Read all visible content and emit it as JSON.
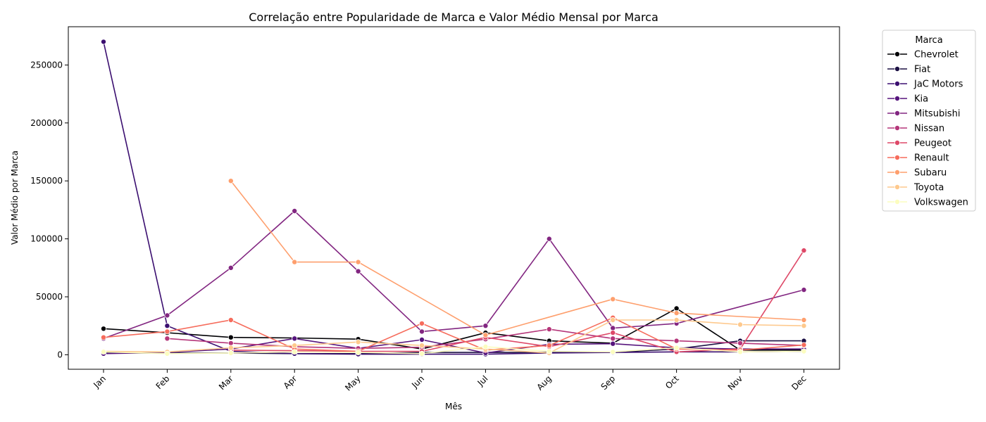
{
  "chart_data": {
    "type": "line",
    "title": "Correlação entre Popularidade de Marca e Valor Médio Mensal por Marca",
    "xlabel": "Mês",
    "ylabel": "Valor Médio por Marca",
    "categories": [
      "Jan",
      "Feb",
      "Mar",
      "Apr",
      "May",
      "Jun",
      "Jul",
      "Aug",
      "Sep",
      "Oct",
      "Nov",
      "Dec"
    ],
    "ylim": [
      -12500,
      283000
    ],
    "yticks": [
      0,
      50000,
      100000,
      150000,
      200000,
      250000
    ],
    "grid": false,
    "legend": {
      "title": "Marca",
      "placement": "outside-top-right"
    },
    "series": [
      {
        "name": "Chevrolet",
        "color": "#000004",
        "values": [
          22500,
          19000,
          15000,
          14500,
          13500,
          5000,
          19000,
          12000,
          10000,
          40000,
          4000,
          4000
        ]
      },
      {
        "name": "Fiat",
        "color": "#1c1044",
        "values": [
          1500,
          1500,
          1500,
          1000,
          1000,
          2000,
          2000,
          2000,
          2000,
          5000,
          12000,
          12000
        ]
      },
      {
        "name": "JaC Motors",
        "color": "#3b0f70",
        "values": [
          270000,
          25000,
          3000,
          1000,
          500,
          500,
          500,
          1500,
          2000,
          2500,
          2500,
          3000
        ]
      },
      {
        "name": "Kia",
        "color": "#56147d",
        "values": [
          1000,
          2000,
          5000,
          14000,
          5500,
          13000,
          1500,
          9000,
          9500,
          6000,
          5000,
          5000
        ]
      },
      {
        "name": "Mitsubishi",
        "color": "#822681",
        "values": [
          14000,
          34000,
          75000,
          124000,
          72000,
          20000,
          25000,
          100000,
          23000,
          27000,
          null,
          56000
        ]
      },
      {
        "name": "Nissan",
        "color": "#b5367a",
        "values": [
          null,
          14000,
          10000,
          7000,
          5500,
          6500,
          13500,
          22000,
          14000,
          12000,
          10000,
          8000
        ]
      },
      {
        "name": "Peugeot",
        "color": "#de4968",
        "values": [
          null,
          null,
          4000,
          3500,
          3000,
          3000,
          15000,
          7000,
          19000,
          2500,
          5000,
          90000
        ]
      },
      {
        "name": "Renault",
        "color": "#f66c5c",
        "values": [
          15000,
          20000,
          30000,
          5000,
          3000,
          27000,
          4000,
          8000,
          32000,
          5000,
          4000,
          8500
        ]
      },
      {
        "name": "Subaru",
        "color": "#fe9f6d",
        "values": [
          null,
          null,
          150000,
          80000,
          80000,
          null,
          17000,
          null,
          48000,
          36000,
          null,
          30000
        ]
      },
      {
        "name": "Toyota",
        "color": "#fec98d",
        "values": [
          3000,
          2500,
          6000,
          8000,
          11000,
          8000,
          5000,
          1500,
          30000,
          30000,
          26000,
          25000
        ]
      },
      {
        "name": "Volkswagen",
        "color": "#fcfdbf",
        "values": [
          2500,
          1000,
          1500,
          2500,
          2000,
          1000,
          7000,
          3000,
          2500,
          6000,
          2500,
          3000
        ]
      }
    ]
  }
}
